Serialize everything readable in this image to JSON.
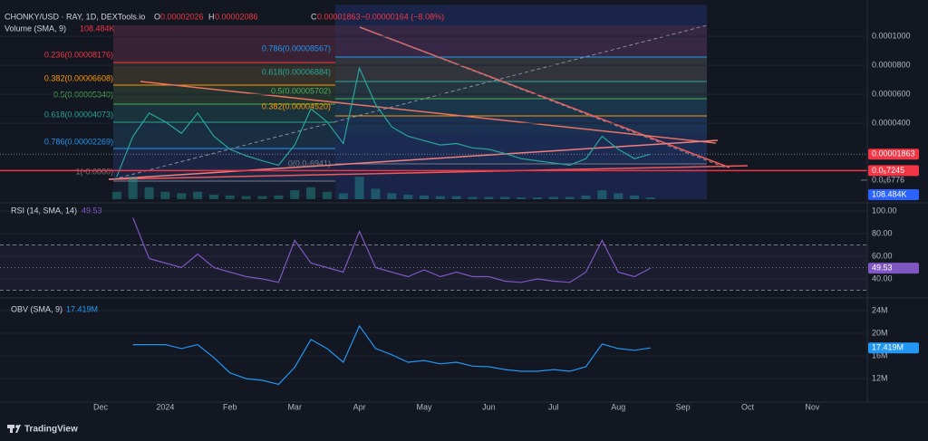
{
  "branding": "TradingView",
  "chart_data": [
    {
      "type": "line",
      "title": "CHONKY/USD · RAY, 1D, DEXTools.io",
      "ohlc": [
        {
          "label": "O",
          "value": 2.026e-05
        },
        {
          "label": "H",
          "value": 2.086e-05
        },
        {
          "label": "C"
        }
      ],
      "change": "−0.00000164 (−8.08%)",
      "volume_title": "Volume (SMA, 9)",
      "ylim": [
        -1.25e-05,
        0.000122
      ],
      "yticks": [
        {
          "value": 0.0001,
          "label": "0.0001000"
        },
        {
          "value": 8e-05,
          "label": "0.0000800"
        },
        {
          "value": 6e-05,
          "label": "0.0000600"
        },
        {
          "value": 4e-05,
          "label": "0.0000400"
        }
      ],
      "y2lim": [
        0,
        13000
      ],
      "price_labels": [
        {
          "value": 7.245e-06,
          "label": "0.0₅7245"
        },
        {
          "value": 6.776e-07,
          "label": "0.0₆6776"
        }
      ],
      "fib_annotations": [
        "0.236(0.00008176)",
        "0.382(0.00006608)",
        "0.5(0.00005340)",
        "0.618(0.00004073)",
        "0.786(0.00002269)",
        "1(-0.0000)",
        "0.786(0.00008567)",
        "0.618(0.00006884)",
        "0.5(0.00005702)",
        "0.382(0.00004520)",
        "0(0.0₆6941)"
      ],
      "series": [
        {
          "name": "CHONKY/USD",
          "color": "#26a69a",
          "values": [
            null,
            3e-06,
            3.1e-05,
            4.7e-05,
            4.1e-05,
            3.3e-05,
            4.7e-05,
            3.1e-05,
            2.2e-05,
            1.75e-05,
            1.4e-05,
            1.1e-05,
            2.5e-05,
            5e-05,
            4.1e-05,
            2.6e-05,
            7.8e-05,
            5.3e-05,
            3.75e-05,
            3.1e-05,
            2.8e-05,
            2.5e-05,
            2.6e-05,
            2.3e-05,
            2.2e-05,
            1.9e-05,
            1.55e-05,
            1.4e-05,
            1.25e-05,
            1.1e-05,
            1.55e-05,
            3.1e-05,
            2.2e-05,
            1.55e-05,
            1.863e-05,
            null,
            null,
            null,
            null,
            null,
            null,
            null,
            null,
            null,
            null,
            null,
            null,
            null
          ]
        },
        {
          "name": "Volume",
          "color": "#26a69a",
          "axis": "y2",
          "values": [
            null,
            500,
            1500,
            800,
            500,
            400,
            500,
            300,
            250,
            200,
            200,
            250,
            600,
            800,
            500,
            400,
            1500,
            700,
            400,
            300,
            250,
            200,
            200,
            150,
            150,
            150,
            120,
            120,
            150,
            150,
            250,
            600,
            400,
            250,
            108.484,
            null,
            null,
            null,
            null,
            null,
            null,
            null,
            null,
            null,
            null,
            null,
            null,
            null
          ],
          "value_labels": [
            null,
            null,
            null,
            null,
            null,
            null,
            null,
            null,
            null,
            null,
            null,
            null,
            null,
            null,
            null,
            null,
            null,
            null,
            null,
            null,
            null,
            null,
            null,
            null,
            null,
            null,
            null,
            null,
            null,
            null,
            null,
            null,
            null,
            null,
            "108.484K",
            null,
            null,
            null,
            null,
            null,
            null,
            null,
            null,
            null,
            null,
            null,
            null,
            null
          ]
        }
      ]
    },
    {
      "type": "line",
      "title": "RSI (14, SMA, 14)",
      "ylim": [
        26.4,
        104
      ],
      "yticks": [
        {
          "value": 100,
          "label": "100.00"
        },
        {
          "value": 80,
          "label": "80.00"
        },
        {
          "value": 60,
          "label": "60.00"
        },
        {
          "value": 40,
          "label": "40.00"
        }
      ],
      "bands": [
        70,
        50,
        30
      ],
      "series": [
        {
          "name": "RSI",
          "color": "#7e57c2",
          "values": [
            null,
            null,
            94,
            58,
            54,
            50,
            62,
            50,
            46,
            42,
            40,
            37,
            74,
            54,
            50,
            46,
            82,
            50,
            46,
            42,
            48,
            42,
            46,
            42,
            42,
            38,
            37,
            40,
            38,
            37,
            46,
            74,
            46,
            42,
            49.53,
            null,
            null,
            null,
            null,
            null,
            null,
            null,
            null,
            null,
            null,
            null,
            null,
            null
          ]
        }
      ]
    },
    {
      "type": "line",
      "title": "OBV (SMA, 9)",
      "ylim": [
        8.5,
        25.6
      ],
      "yticks": [
        {
          "value": 24,
          "label": "24M"
        },
        {
          "value": 20,
          "label": "20M"
        },
        {
          "value": 16,
          "label": "16M"
        },
        {
          "value": 12,
          "label": "12M"
        }
      ],
      "categories": [
        "Dec",
        null,
        null,
        null,
        "2024",
        null,
        null,
        null,
        "Feb",
        null,
        null,
        null,
        "Mar",
        null,
        null,
        null,
        "Apr",
        null,
        null,
        null,
        "May",
        null,
        null,
        null,
        "Jun",
        null,
        null,
        null,
        "Jul",
        null,
        null,
        null,
        "Aug",
        null,
        null,
        null,
        "Sep",
        null,
        null,
        null,
        "Oct",
        null,
        null,
        null,
        "Nov",
        null,
        null,
        null
      ],
      "series": [
        {
          "name": "OBV",
          "color": "#2196f3",
          "values": [
            null,
            null,
            18,
            18,
            18,
            17.3,
            18,
            15.7,
            13,
            12,
            11.7,
            11,
            14,
            18.9,
            17.3,
            14.9,
            21.3,
            17.3,
            16.2,
            14.9,
            15.2,
            14.6,
            14.9,
            14.2,
            14.1,
            13.6,
            13.3,
            13.3,
            13.6,
            13.3,
            14.1,
            18.1,
            17.3,
            17,
            17.419,
            null,
            null,
            null,
            null,
            null,
            null,
            null,
            null,
            null,
            null,
            null,
            null,
            null
          ],
          "value_labels": [
            null,
            null,
            null,
            null,
            null,
            null,
            null,
            null,
            null,
            null,
            null,
            null,
            null,
            null,
            null,
            null,
            null,
            null,
            null,
            null,
            null,
            null,
            null,
            null,
            null,
            null,
            null,
            null,
            null,
            null,
            null,
            null,
            null,
            null,
            "17.419M",
            null,
            null,
            null,
            null,
            null,
            null,
            null,
            null,
            null,
            null,
            null,
            null,
            null
          ]
        }
      ]
    }
  ]
}
